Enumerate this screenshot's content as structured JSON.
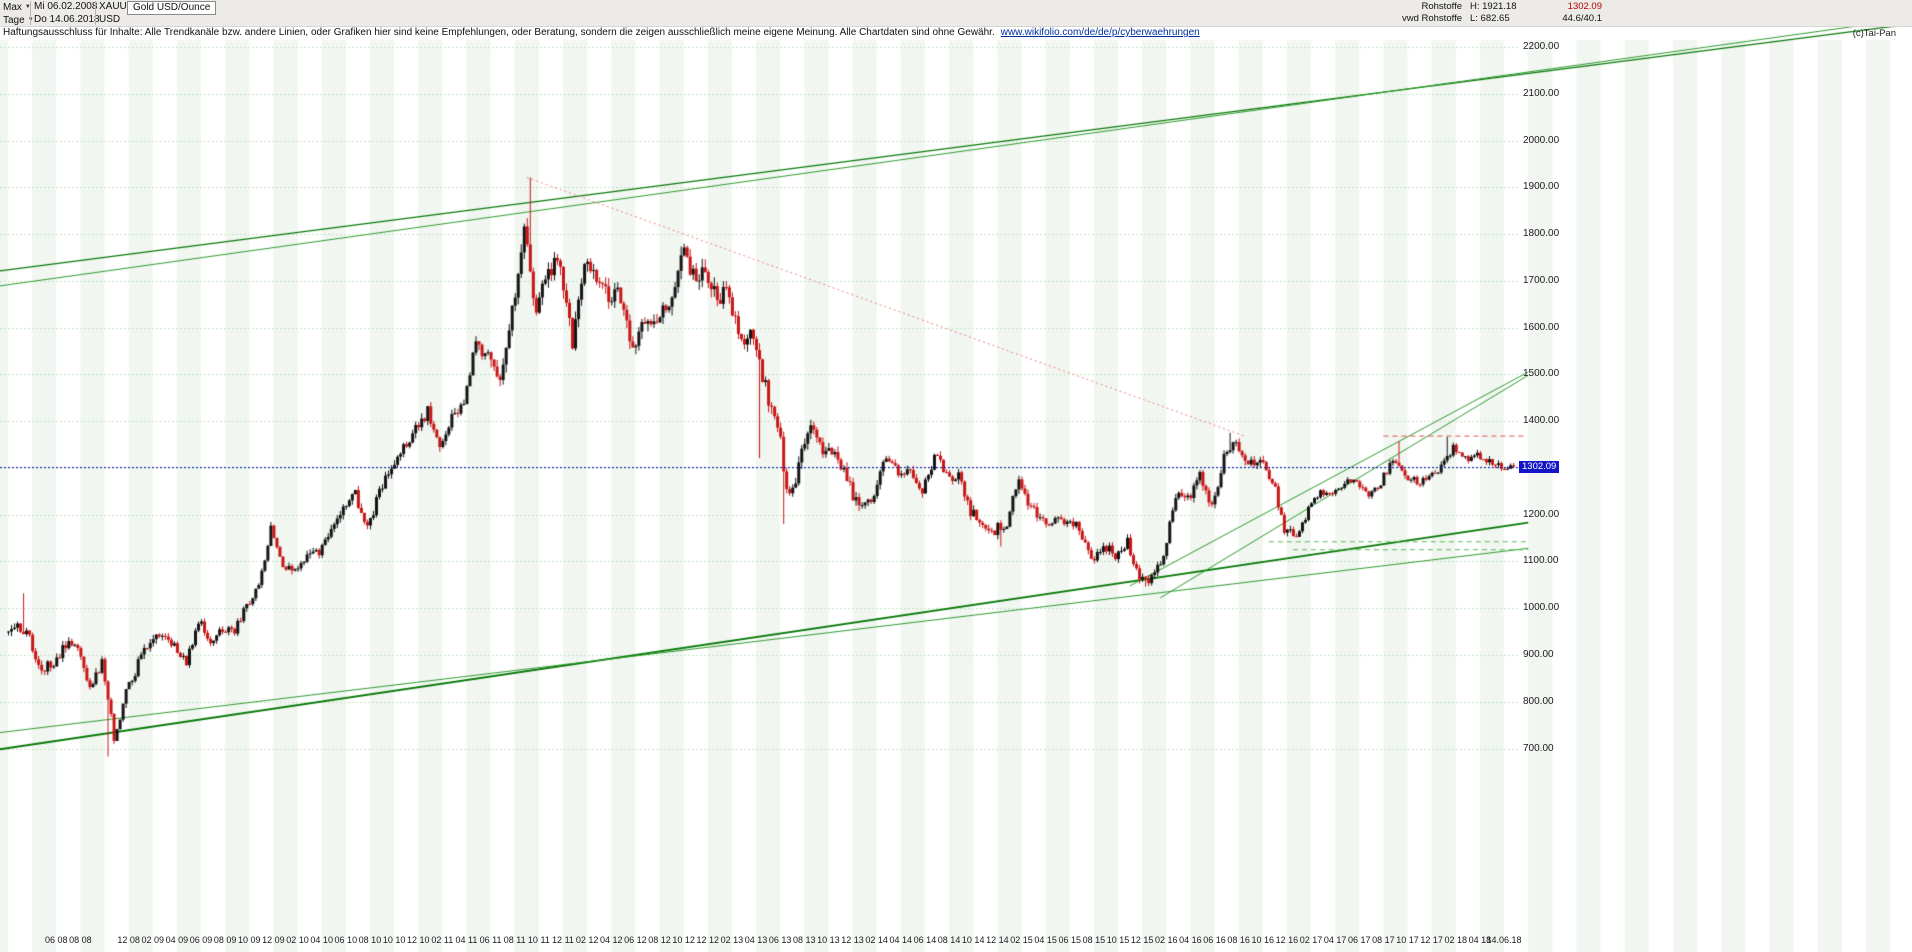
{
  "icons": {
    "dropdown_arrow": "▼"
  },
  "header": {
    "range_label": "Max",
    "period_label": "Tage",
    "start_date": "Mi 06.02.2008",
    "end_date": "Do 14.06.2018",
    "symbol": "XAUUSD",
    "currency": "USD",
    "instrument_name": "Gold USD/Ounce",
    "info": {
      "group": "Rohstoffe",
      "provider": "vwd Rohstoffe",
      "high": "H: 1921.18",
      "low": "L: 682.65",
      "last": "1302.09",
      "change": "44.6/40.1",
      "copyright": "(c)Tai-Pan"
    }
  },
  "disclaimer": {
    "text": "Haftungsausschluss für Inhalte: Alle Trendkanäle bzw. andere Linien, oder Grafiken hier sind keine Empfehlungen, oder Beratung, sondern die zeigen ausschließlich meine eigene Meinung. Alle Chartdaten sind ohne Gewähr.",
    "link": "www.wikifolio.com/de/de/p/cyberwaehrungen"
  },
  "chart_data": {
    "type": "candlestick",
    "title": "Gold USD/Ounce",
    "symbol": "XAUUSD",
    "date_start": "06.02.2008",
    "date_end": "14.06.2018",
    "ylim": [
      700,
      2200
    ],
    "grid": "on",
    "period_high": 1921.18,
    "period_low": 682.65,
    "last_price": 1302.09,
    "y_ticks": [
      "2200.00",
      "2100.00",
      "2000.00",
      "1900.00",
      "1800.00",
      "1700.00",
      "1600.00",
      "1500.00",
      "1400.00",
      "1300.00",
      "1200.00",
      "1100.00",
      "1000.00",
      "900.00",
      "800.00",
      "700.00"
    ],
    "x_ticks": [
      {
        "label": "06 08",
        "month_index": 4
      },
      {
        "label": "08 08",
        "month_index": 6
      },
      {
        "label": "12 08",
        "month_index": 10
      },
      {
        "label": "02 09",
        "month_index": 12
      },
      {
        "label": "04 09",
        "month_index": 14
      },
      {
        "label": "06 09",
        "month_index": 16
      },
      {
        "label": "08 09",
        "month_index": 18
      },
      {
        "label": "10 09",
        "month_index": 20
      },
      {
        "label": "12 09",
        "month_index": 22
      },
      {
        "label": "02 10",
        "month_index": 24
      },
      {
        "label": "04 10",
        "month_index": 26
      },
      {
        "label": "06 10",
        "month_index": 28
      },
      {
        "label": "08 10",
        "month_index": 30
      },
      {
        "label": "10 10",
        "month_index": 32
      },
      {
        "label": "12 10",
        "month_index": 34
      },
      {
        "label": "02 11",
        "month_index": 36
      },
      {
        "label": "04 11",
        "month_index": 38
      },
      {
        "label": "06 11",
        "month_index": 40
      },
      {
        "label": "08 11",
        "month_index": 42
      },
      {
        "label": "10 11",
        "month_index": 44
      },
      {
        "label": "12 11",
        "month_index": 46
      },
      {
        "label": "02 12",
        "month_index": 48
      },
      {
        "label": "04 12",
        "month_index": 50
      },
      {
        "label": "06 12",
        "month_index": 52
      },
      {
        "label": "08 12",
        "month_index": 54
      },
      {
        "label": "10 12",
        "month_index": 56
      },
      {
        "label": "12 12",
        "month_index": 58
      },
      {
        "label": "02 13",
        "month_index": 60
      },
      {
        "label": "04 13",
        "month_index": 62
      },
      {
        "label": "06 13",
        "month_index": 64
      },
      {
        "label": "08 13",
        "month_index": 66
      },
      {
        "label": "10 13",
        "month_index": 68
      },
      {
        "label": "12 13",
        "month_index": 70
      },
      {
        "label": "02 14",
        "month_index": 72
      },
      {
        "label": "04 14",
        "month_index": 74
      },
      {
        "label": "06 14",
        "month_index": 76
      },
      {
        "label": "08 14",
        "month_index": 78
      },
      {
        "label": "10 14",
        "month_index": 80
      },
      {
        "label": "12 14",
        "month_index": 82
      },
      {
        "label": "02 15",
        "month_index": 84
      },
      {
        "label": "04 15",
        "month_index": 86
      },
      {
        "label": "06 15",
        "month_index": 88
      },
      {
        "label": "08 15",
        "month_index": 90
      },
      {
        "label": "10 15",
        "month_index": 92
      },
      {
        "label": "12 15",
        "month_index": 94
      },
      {
        "label": "02 16",
        "month_index": 96
      },
      {
        "label": "04 16",
        "month_index": 98
      },
      {
        "label": "06 16",
        "month_index": 100
      },
      {
        "label": "08 16",
        "month_index": 102
      },
      {
        "label": "10 16",
        "month_index": 104
      },
      {
        "label": "12 16",
        "month_index": 106
      },
      {
        "label": "02 17",
        "month_index": 108
      },
      {
        "label": "04 17",
        "month_index": 110
      },
      {
        "label": "06 17",
        "month_index": 112
      },
      {
        "label": "08 17",
        "month_index": 114
      },
      {
        "label": "10 17",
        "month_index": 116
      },
      {
        "label": "12 17",
        "month_index": 118
      },
      {
        "label": "02 18",
        "month_index": 120
      },
      {
        "label": "04 18",
        "month_index": 122
      },
      {
        "label": "14.06.18",
        "month_index": 124
      }
    ],
    "series": {
      "start_month": "2008-02",
      "interval": "monthly-close-approx",
      "closes": [
        971,
        933,
        871,
        885,
        926,
        913,
        833,
        885,
        724,
        816,
        880,
        927,
        952,
        916,
        883,
        975,
        927,
        953,
        955,
        1008,
        1040,
        1175,
        1097,
        1081,
        1118,
        1113,
        1179,
        1215,
        1244,
        1169,
        1248,
        1307,
        1346,
        1385,
        1421,
        1333,
        1411,
        1439,
        1563,
        1536,
        1502,
        1628,
        1825,
        1622,
        1722,
        1746,
        1564,
        1737,
        1696,
        1662,
        1664,
        1560,
        1604,
        1614,
        1648,
        1771,
        1719,
        1714,
        1675,
        1660,
        1580,
        1596,
        1469,
        1387,
        1234,
        1323,
        1394,
        1328,
        1323,
        1253,
        1205,
        1244,
        1326,
        1284,
        1291,
        1250,
        1327,
        1282,
        1287,
        1208,
        1173,
        1167,
        1184,
        1283,
        1213,
        1183,
        1184,
        1191,
        1171,
        1095,
        1135,
        1115,
        1142,
        1065,
        1061,
        1118,
        1239,
        1233,
        1293,
        1215,
        1322,
        1351,
        1309,
        1316,
        1277,
        1173,
        1152,
        1210,
        1249,
        1249,
        1268,
        1269,
        1242,
        1269,
        1321,
        1280,
        1271,
        1275,
        1303,
        1345,
        1318,
        1325,
        1315,
        1298,
        1302.09
      ]
    },
    "extremes": [
      {
        "month_index": 1,
        "type": "high",
        "price": 1032
      },
      {
        "month_index": 8,
        "type": "low",
        "price": 682.65
      },
      {
        "month_index": 43,
        "type": "high",
        "price": 1921.18
      },
      {
        "month_index": 62,
        "type": "low",
        "price": 1321
      },
      {
        "month_index": 64,
        "type": "low",
        "price": 1180
      },
      {
        "month_index": 82,
        "type": "low",
        "price": 1132
      },
      {
        "month_index": 94,
        "type": "low",
        "price": 1046
      },
      {
        "month_index": 101,
        "type": "high",
        "price": 1375
      },
      {
        "month_index": 115,
        "type": "high",
        "price": 1357
      },
      {
        "month_index": 119,
        "type": "high",
        "price": 1366
      }
    ],
    "horizontal_line": {
      "price": 1302.09,
      "label": "1302.09",
      "color": "#1414c8",
      "style": "dashed"
    },
    "trendlines": [
      {
        "name": "upper-channel-line",
        "style": "solid",
        "width": 1.3,
        "color": "#067806",
        "from_idx": -1,
        "from_price": 1720,
        "to_idx": 158,
        "to_price": 2250
      },
      {
        "name": "upper-channel-line-2",
        "style": "solid",
        "width": 1,
        "color": "#2f9b2f",
        "from_idx": -1,
        "from_price": 1688,
        "to_idx": 158,
        "to_price": 2262
      },
      {
        "name": "lower-channel-line",
        "style": "solid",
        "width": 2,
        "color": "#067806",
        "from_idx": -1,
        "from_price": 697,
        "to_idx": 126,
        "to_price": 1183
      },
      {
        "name": "lower-channel-line-2",
        "style": "solid",
        "width": 1,
        "color": "#2f9b2f",
        "from_idx": -1,
        "from_price": 733,
        "to_idx": 126,
        "to_price": 1128
      },
      {
        "name": "rising-support-2016",
        "style": "solid",
        "width": 1,
        "color": "#2f9b2f",
        "from_idx": 93,
        "from_price": 1048,
        "to_idx": 126,
        "to_price": 1505
      },
      {
        "name": "rising-support-2016-b",
        "style": "solid",
        "width": 1,
        "color": "#2f9b2f",
        "from_idx": 95.5,
        "from_price": 1022,
        "to_idx": 126,
        "to_price": 1498
      },
      {
        "name": "descending-resistance",
        "style": "dotted",
        "width": 1,
        "color": "#ef8282",
        "from_idx": 43,
        "from_price": 1921,
        "to_idx": 102.5,
        "to_price": 1368
      },
      {
        "name": "resistance-level",
        "style": "dashed",
        "width": 1,
        "color": "#e05050",
        "from_idx": 114,
        "from_price": 1368,
        "to_idx": 125.6,
        "to_price": 1368
      },
      {
        "name": "support-level-1",
        "style": "dashed",
        "width": 1,
        "color": "#55bb55",
        "from_idx": 104.5,
        "from_price": 1142,
        "to_idx": 126,
        "to_price": 1142
      },
      {
        "name": "support-level-2",
        "style": "dashed",
        "width": 1,
        "color": "#55bb55",
        "from_idx": 106.5,
        "from_price": 1125,
        "to_idx": 126,
        "to_price": 1125
      }
    ],
    "colors": {
      "up": "#141414",
      "down": "#c81616",
      "grid": "#b5e0b5",
      "stripe": "#f1f6f1",
      "current": "#1414c8"
    }
  }
}
